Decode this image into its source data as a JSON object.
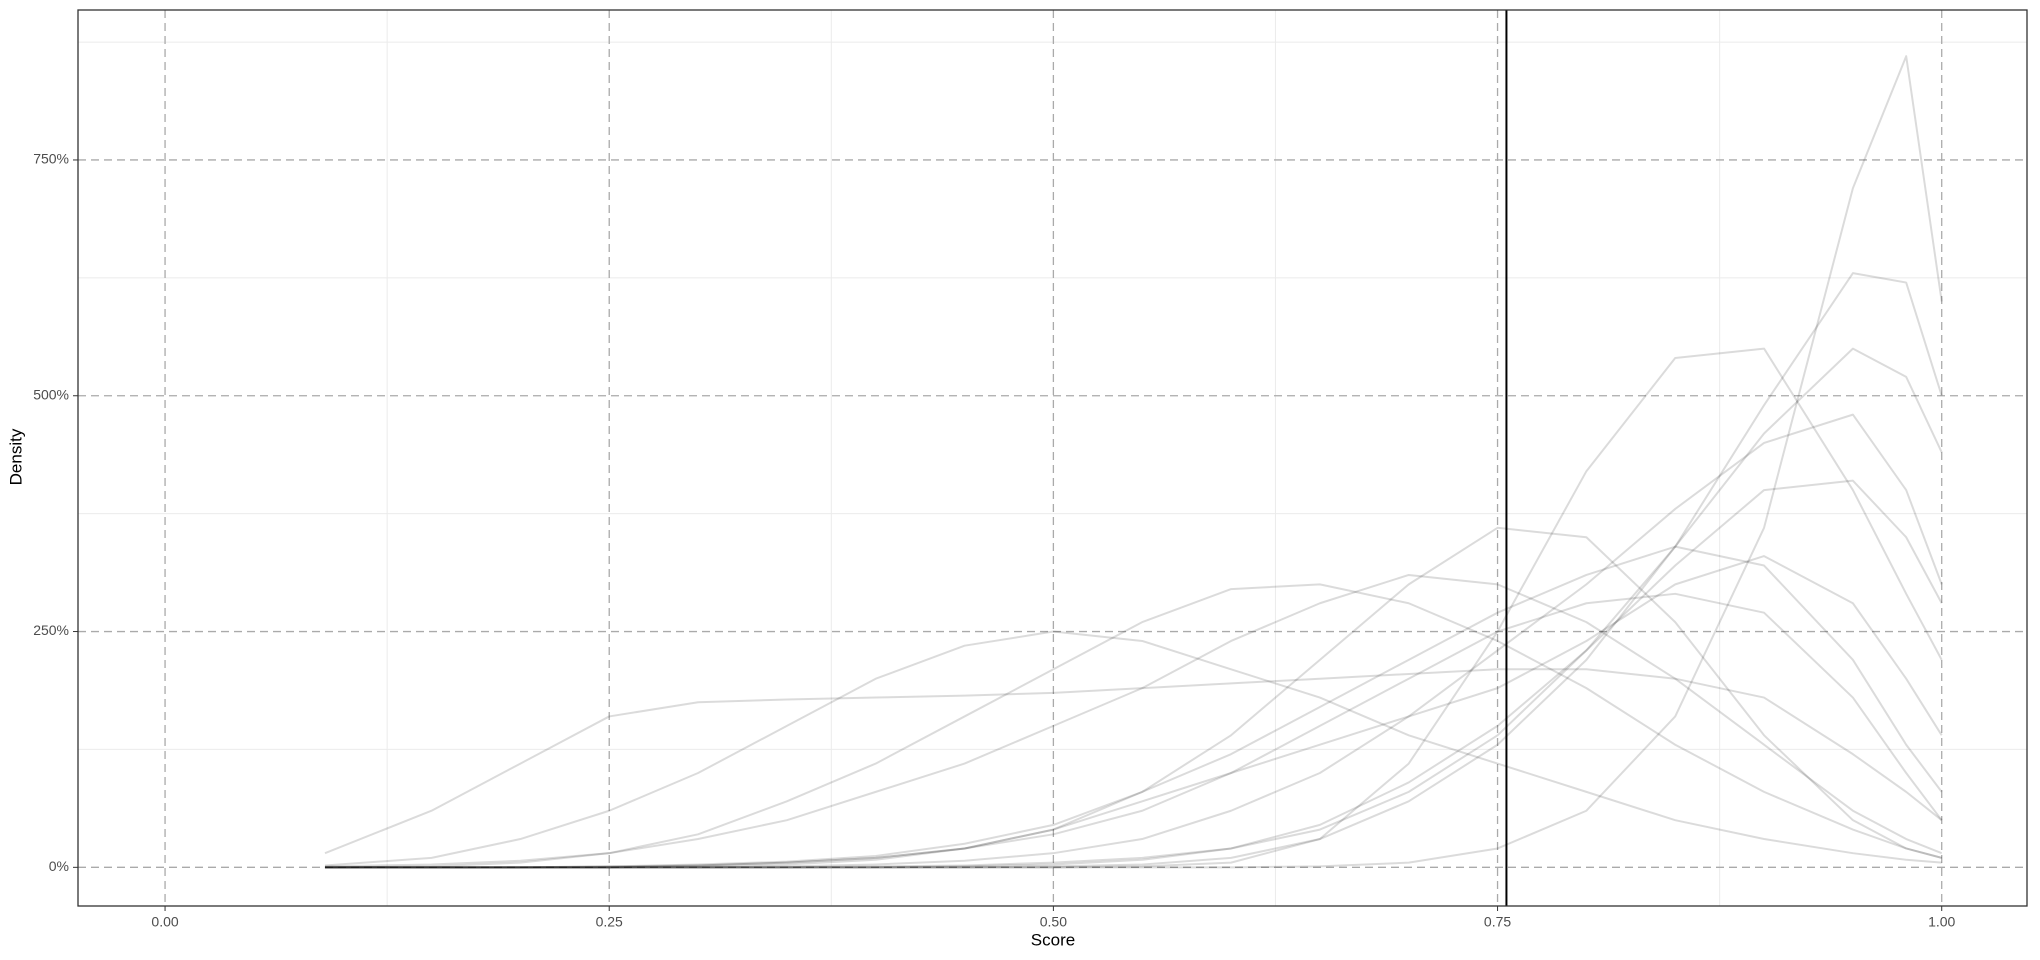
{
  "chart_data": {
    "type": "line",
    "x_label": "Score",
    "y_label": "Density",
    "x": [
      0.09,
      0.15,
      0.2,
      0.25,
      0.3,
      0.35,
      0.4,
      0.45,
      0.5,
      0.55,
      0.6,
      0.65,
      0.7,
      0.75,
      0.8,
      0.85,
      0.9,
      0.95,
      0.98,
      1.0
    ],
    "series": [
      {
        "values": [
          0,
          0,
          0,
          0,
          0,
          0,
          0,
          0,
          0,
          0,
          0,
          0.01,
          0.05,
          0.2,
          0.6,
          1.6,
          3.6,
          7.2,
          8.6,
          6.0
        ]
      },
      {
        "values": [
          0,
          0,
          0,
          0,
          0,
          0,
          0,
          0,
          0.01,
          0.03,
          0.1,
          0.3,
          0.7,
          1.3,
          2.2,
          3.4,
          4.9,
          6.3,
          6.2,
          5.0
        ]
      },
      {
        "values": [
          0,
          0,
          0,
          0,
          0,
          0,
          0,
          0,
          0,
          0.01,
          0.05,
          0.3,
          1.1,
          2.5,
          4.2,
          5.4,
          5.5,
          4.0,
          2.9,
          2.2
        ]
      },
      {
        "values": [
          0.15,
          0.6,
          1.1,
          1.6,
          1.75,
          1.78,
          1.8,
          1.82,
          1.85,
          1.9,
          1.95,
          2.0,
          2.05,
          2.1,
          2.1,
          2.0,
          1.8,
          1.2,
          0.8,
          0.5
        ]
      },
      {
        "values": [
          0.02,
          0.1,
          0.3,
          0.6,
          1.0,
          1.5,
          2.0,
          2.35,
          2.5,
          2.4,
          2.1,
          1.8,
          1.4,
          1.1,
          0.8,
          0.5,
          0.3,
          0.15,
          0.08,
          0.05
        ]
      },
      {
        "values": [
          0,
          0.01,
          0.05,
          0.15,
          0.35,
          0.7,
          1.1,
          1.6,
          2.1,
          2.6,
          2.95,
          3.0,
          2.8,
          2.4,
          1.9,
          1.3,
          0.8,
          0.4,
          0.2,
          0.1
        ]
      },
      {
        "values": [
          0,
          0,
          0,
          0,
          0.01,
          0.03,
          0.08,
          0.2,
          0.4,
          0.8,
          1.4,
          2.2,
          3.0,
          3.6,
          3.5,
          2.6,
          1.4,
          0.5,
          0.2,
          0.1
        ]
      },
      {
        "values": [
          0,
          0,
          0,
          0,
          0.02,
          0.05,
          0.1,
          0.2,
          0.4,
          0.7,
          1.0,
          1.3,
          1.6,
          1.9,
          2.4,
          3.0,
          3.3,
          2.8,
          2.0,
          1.4
        ]
      },
      {
        "values": [
          0,
          0,
          0,
          0,
          0,
          0,
          0.01,
          0.02,
          0.05,
          0.1,
          0.2,
          0.4,
          0.8,
          1.4,
          2.3,
          3.4,
          4.6,
          5.5,
          5.2,
          4.4
        ]
      },
      {
        "values": [
          0,
          0,
          0,
          0,
          0,
          0.01,
          0.03,
          0.07,
          0.15,
          0.3,
          0.6,
          1.0,
          1.6,
          2.3,
          3.0,
          3.8,
          4.5,
          4.8,
          4.0,
          3.0
        ]
      },
      {
        "values": [
          0,
          0,
          0,
          0.01,
          0.03,
          0.06,
          0.12,
          0.25,
          0.45,
          0.8,
          1.2,
          1.7,
          2.2,
          2.7,
          3.1,
          3.4,
          3.2,
          2.2,
          1.3,
          0.8
        ]
      },
      {
        "values": [
          0.01,
          0.03,
          0.07,
          0.15,
          0.3,
          0.5,
          0.8,
          1.1,
          1.5,
          1.9,
          2.4,
          2.8,
          3.1,
          3.0,
          2.6,
          2.0,
          1.3,
          0.6,
          0.3,
          0.15
        ]
      },
      {
        "values": [
          0,
          0,
          0,
          0,
          0,
          0,
          0,
          0.01,
          0.03,
          0.08,
          0.2,
          0.45,
          0.9,
          1.5,
          2.3,
          3.2,
          4.0,
          4.1,
          3.5,
          2.8
        ]
      },
      {
        "values": [
          0,
          0,
          0,
          0.01,
          0.02,
          0.05,
          0.1,
          0.2,
          0.35,
          0.6,
          1.0,
          1.5,
          2.0,
          2.5,
          2.8,
          2.9,
          2.7,
          1.8,
          1.0,
          0.5
        ]
      }
    ],
    "color": "#000000",
    "opacity": 0.14,
    "vline": 0.755,
    "vline_color": "#000000",
    "xlim": [
      -0.049,
      1.048
    ],
    "xticks": [
      {
        "value": 0,
        "label": "0.00"
      },
      0.25,
      {
        "value": 0.5,
        "label": "0.50"
      },
      0.75,
      {
        "value": 1,
        "label": "1.00"
      }
    ],
    "ylim": [
      -0.41,
      9.09
    ],
    "yticks": [
      {
        "value": 0,
        "label": "0%"
      },
      {
        "value": 2.5,
        "label": "250%"
      },
      {
        "value": 5,
        "label": "500%"
      },
      {
        "value": 7.5,
        "label": "750%"
      }
    ],
    "grid": true
  }
}
